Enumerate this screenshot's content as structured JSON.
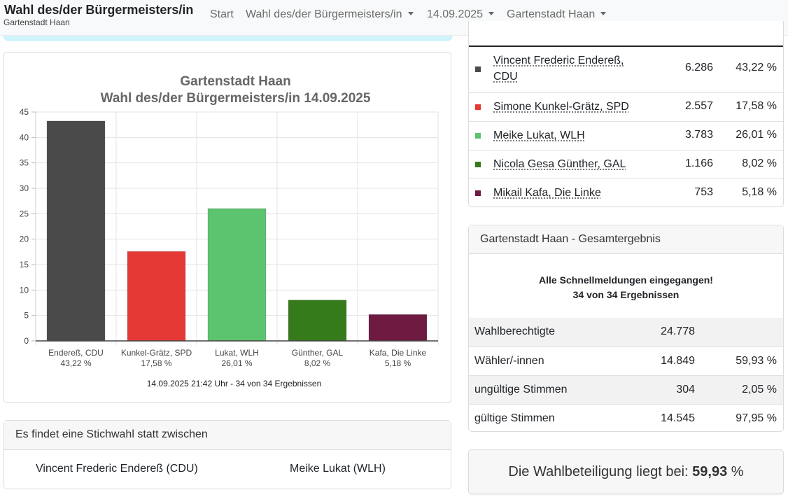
{
  "navbar": {
    "brand_title": "Wahl des/der Bürgermeisters/in",
    "brand_subtitle": "Gartenstadt Haan",
    "items": [
      {
        "label": "Start"
      },
      {
        "label": "Wahl des/der Bürgermeisters/in"
      },
      {
        "label": "14.09.2025"
      },
      {
        "label": "Gartenstadt Haan"
      }
    ]
  },
  "chart_data": {
    "type": "bar",
    "title": [
      "Gartenstadt Haan",
      "Wahl des/der Bürgermeisters/in 14.09.2025"
    ],
    "categories": [
      [
        "Endereß, CDU",
        "43,22 %"
      ],
      [
        "Kunkel-Grätz, SPD",
        "17,58 %"
      ],
      [
        "Lukat, WLH",
        "26,01 %"
      ],
      [
        "Günther, GAL",
        "8,02 %"
      ],
      [
        "Kafa, Die Linke",
        "5,18 %"
      ]
    ],
    "values": [
      43.22,
      17.58,
      26.01,
      8.02,
      5.18
    ],
    "colors": [
      "#4a4a4a",
      "#e53935",
      "#5cc46e",
      "#357a1b",
      "#6f1a40"
    ],
    "ylim": [
      0,
      45
    ],
    "yticks": [
      0,
      5,
      10,
      15,
      20,
      25,
      30,
      35,
      40,
      45
    ],
    "grid": true,
    "footer": "14.09.2025 21:42 Uhr - 34 von 34 Ergebnissen"
  },
  "runoff": {
    "header": "Es findet eine Stichwahl statt zwischen",
    "candidates": [
      "Vincent Frederic Endereß (CDU)",
      "Meike Lukat (WLH)"
    ]
  },
  "results": [
    {
      "name": "Vincent Frederic Endereß, CDU",
      "name_lines": [
        "Vincent Frederic Endereß,",
        "CDU"
      ],
      "votes": "6.286",
      "percent": "43,22 %",
      "color": "#4a4a4a"
    },
    {
      "name": "Simone Kunkel-Grätz, SPD",
      "votes": "2.557",
      "percent": "17,58 %",
      "color": "#e53935"
    },
    {
      "name": "Meike Lukat, WLH",
      "votes": "3.783",
      "percent": "26,01 %",
      "color": "#5cc46e"
    },
    {
      "name": "Nicola Gesa Günther, GAL",
      "votes": "1.166",
      "percent": "8,02 %",
      "color": "#357a1b"
    },
    {
      "name": "Mikail Kafa, Die Linke",
      "votes": "753",
      "percent": "5,18 %",
      "color": "#6f1a40"
    }
  ],
  "summary": {
    "header": "Gartenstadt Haan - Gesamtergebnis",
    "notice_line1": "Alle Schnellmeldungen eingegangen!",
    "notice_line2": "34 von 34 Ergebnissen",
    "rows": [
      {
        "label": "Wahlberechtigte",
        "value": "24.778",
        "percent": ""
      },
      {
        "label": "Wähler/-innen",
        "value": "14.849",
        "percent": "59,93 %"
      },
      {
        "label": "ungültige Stimmen",
        "value": "304",
        "percent": "2,05 %"
      },
      {
        "label": "gültige Stimmen",
        "value": "14.545",
        "percent": "97,95 %"
      }
    ]
  },
  "turnout": {
    "label": "Die Wahlbeteiligung liegt bei:",
    "value": "59,93",
    "unit": "%"
  }
}
